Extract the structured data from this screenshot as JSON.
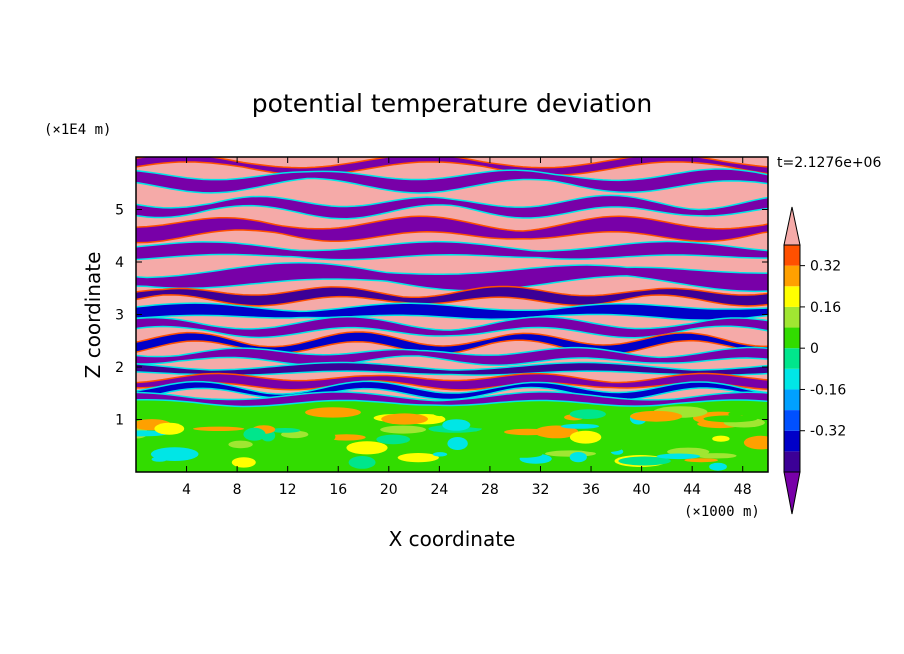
{
  "chart_data": {
    "type": "heatmap",
    "title": "potential temperature deviation",
    "xlabel": "X coordinate",
    "ylabel": "Z coordinate",
    "x_unit": "(×1000 m)",
    "y_unit": "(×1E4 m)",
    "time_label": "t=2.1276e+06",
    "xlim": [
      0,
      50
    ],
    "ylim": [
      0,
      6
    ],
    "x_ticks": [
      4,
      8,
      12,
      16,
      20,
      24,
      28,
      32,
      36,
      40,
      44,
      48
    ],
    "y_ticks": [
      1,
      2,
      3,
      4,
      5
    ],
    "colorbar": {
      "levels": [
        -0.48,
        -0.4,
        -0.32,
        -0.24,
        -0.16,
        -0.08,
        0,
        0.08,
        0.16,
        0.24,
        0.32,
        0.4
      ],
      "colors": [
        "#7800a8",
        "#3c0096",
        "#0000c8",
        "#0050ff",
        "#00a0ff",
        "#00e6e6",
        "#00e68c",
        "#32dc00",
        "#a0e632",
        "#ffff00",
        "#ffa000",
        "#ff5000",
        "#ff1e1e",
        "#f5aaa8"
      ],
      "tick_labels": [
        "0.32",
        "0.16",
        "0",
        "-0.16",
        "-0.32"
      ]
    }
  }
}
